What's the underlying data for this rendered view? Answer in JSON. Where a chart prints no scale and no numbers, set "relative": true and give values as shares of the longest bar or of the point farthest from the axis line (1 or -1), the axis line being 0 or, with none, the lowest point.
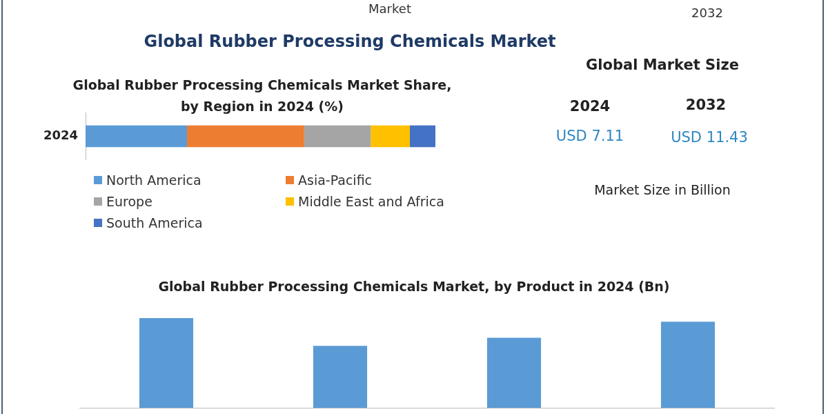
{
  "chart_data": [
    {
      "type": "other",
      "title": "Global Rubber Processing Chemicals Market",
      "annotations": [
        "Market",
        "2032"
      ]
    },
    {
      "type": "bar",
      "title": "Global Rubber Processing Chemicals Market Share, by Region in 2024 (%)",
      "categories": [
        "2024"
      ],
      "orientation": "horizontal",
      "stacked": true,
      "relative": true,
      "legend": "bottom",
      "series": [
        {
          "name": "North America",
          "color": "#5b9bd5",
          "values": [
            0.29
          ]
        },
        {
          "name": "Asia-Pacific",
          "color": "#ed7d31",
          "values": [
            0.335
          ]
        },
        {
          "name": "Europe",
          "color": "#a5a5a5",
          "values": [
            0.19
          ]
        },
        {
          "name": "Middle East and Africa",
          "color": "#ffc000",
          "values": [
            0.112
          ]
        },
        {
          "name": "South America",
          "color": "#4472c4",
          "values": [
            0.073
          ]
        }
      ]
    },
    {
      "type": "other",
      "title": "Global Market Size",
      "annotations": [
        "2024",
        "2032",
        "USD 7.11",
        "USD 11.43",
        "Market Size in Billion"
      ]
    },
    {
      "type": "bar",
      "title": "Global Rubber Processing Chemicals Market, by Product  in 2024 (Bn)",
      "categories": [
        null,
        null,
        null,
        null
      ],
      "relative": true,
      "values": [
        1,
        0.69,
        0.78,
        0.96
      ],
      "color": "#5b9bd5"
    }
  ]
}
